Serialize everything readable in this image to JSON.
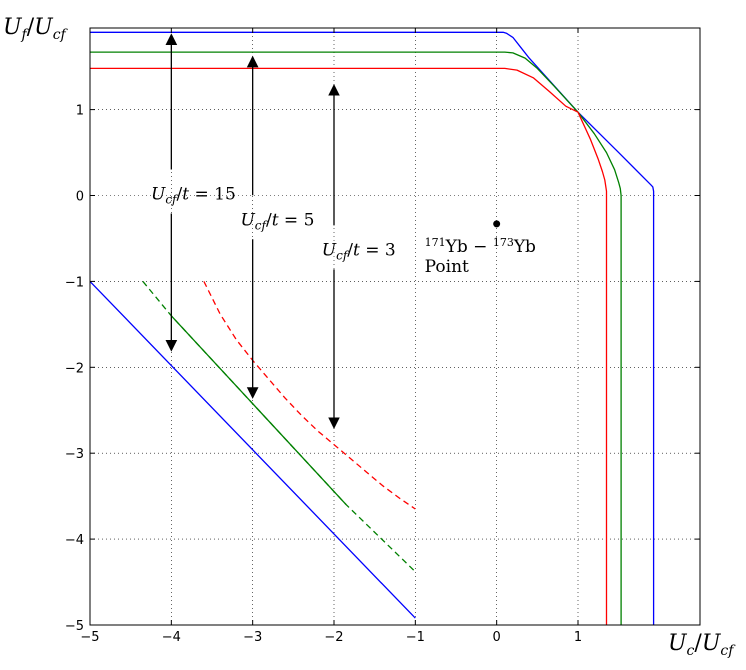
{
  "chart_data": {
    "type": "line",
    "title": "",
    "xlabel": "U_c/U_cf",
    "ylabel": "U_f/U_cf",
    "xlim": [
      -5,
      2.5
    ],
    "ylim": [
      -5,
      1.95
    ],
    "xticks": [
      -5,
      -4,
      -3,
      -2,
      -1,
      0,
      1
    ],
    "yticks": [
      -5,
      -4,
      -3,
      -2,
      -1,
      0,
      1
    ],
    "xtick_labels": [
      "−5",
      "−4",
      "−3",
      "−2",
      "−1",
      "0",
      "1"
    ],
    "ytick_labels": [
      "−5",
      "−4",
      "−3",
      "−2",
      "−1",
      "0",
      "1"
    ],
    "grid": true,
    "grid_style": "dotted",
    "colors": {
      "blue": "#0000ff",
      "green": "#008000",
      "red": "#ff0000",
      "black": "#000000"
    },
    "series": [
      {
        "color": "blue",
        "style": "solid",
        "x": [
          -5,
          0.08,
          0.12,
          0.2,
          0.3,
          0.4,
          1.0,
          1.5,
          1.9,
          1.92,
          1.93,
          1.93
        ],
        "y": [
          1.9,
          1.9,
          1.89,
          1.84,
          1.72,
          1.6,
          0.97,
          0.5,
          0.12,
          0.1,
          0.05,
          -5
        ]
      },
      {
        "color": "green",
        "style": "solid",
        "x": [
          -5,
          0.1,
          0.2,
          0.35,
          0.5,
          0.7,
          1.0,
          1.2,
          1.35,
          1.45,
          1.5,
          1.52,
          1.53,
          1.53
        ],
        "y": [
          1.67,
          1.67,
          1.66,
          1.6,
          1.48,
          1.28,
          0.97,
          0.72,
          0.5,
          0.3,
          0.15,
          0.08,
          0.0,
          -5
        ]
      },
      {
        "color": "red",
        "style": "solid",
        "x": [
          -5,
          0.1,
          0.25,
          0.45,
          0.65,
          0.85,
          1.0,
          1.15,
          1.25,
          1.3,
          1.33,
          1.35,
          1.35
        ],
        "y": [
          1.48,
          1.48,
          1.46,
          1.37,
          1.21,
          1.04,
          0.97,
          0.66,
          0.42,
          0.28,
          0.18,
          0.05,
          -5
        ]
      },
      {
        "color": "blue",
        "style": "solid",
        "x": [
          -5,
          -1
        ],
        "y": [
          -1,
          -4.92
        ]
      },
      {
        "color": "green",
        "style": "solid",
        "x": [
          -4,
          -1.85
        ],
        "y": [
          -1.4,
          -3.6
        ]
      },
      {
        "color": "green",
        "style": "dashed",
        "x": [
          -4.35,
          -4,
          -1.85,
          -1.0
        ],
        "y": [
          -1.0,
          -1.4,
          -3.6,
          -4.38
        ]
      },
      {
        "color": "red",
        "style": "dashed",
        "x": [
          -3.6,
          -3.4,
          -3.2,
          -3.0,
          -2.8,
          -2.6,
          -2.4,
          -2.2,
          -2.0,
          -1.8,
          -1.6,
          -1.4,
          -1.2,
          -1.0
        ],
        "y": [
          -1.0,
          -1.38,
          -1.68,
          -1.92,
          -2.14,
          -2.36,
          -2.56,
          -2.74,
          -2.9,
          -3.06,
          -3.22,
          -3.38,
          -3.52,
          -3.65
        ]
      }
    ],
    "arrows": [
      {
        "x": -4,
        "y_top": 1.82,
        "y_bottom": -1.75,
        "label": "U_cf/t = 15",
        "label_y": 0.0,
        "label_x": -4.25
      },
      {
        "x": -3,
        "y_top": 1.56,
        "y_bottom": -2.3,
        "label": "U_cf/t = 5",
        "label_y": -0.3,
        "label_x": -3.15
      },
      {
        "x": -2,
        "y_top": 1.23,
        "y_bottom": -2.65,
        "label": "U_cf/t = 3",
        "label_y": -0.65,
        "label_x": -2.15
      }
    ],
    "points": [
      {
        "x": 0.0,
        "y": -0.33,
        "label_line1": "171Yb − 173Yb",
        "label_line2": "Point"
      }
    ]
  }
}
